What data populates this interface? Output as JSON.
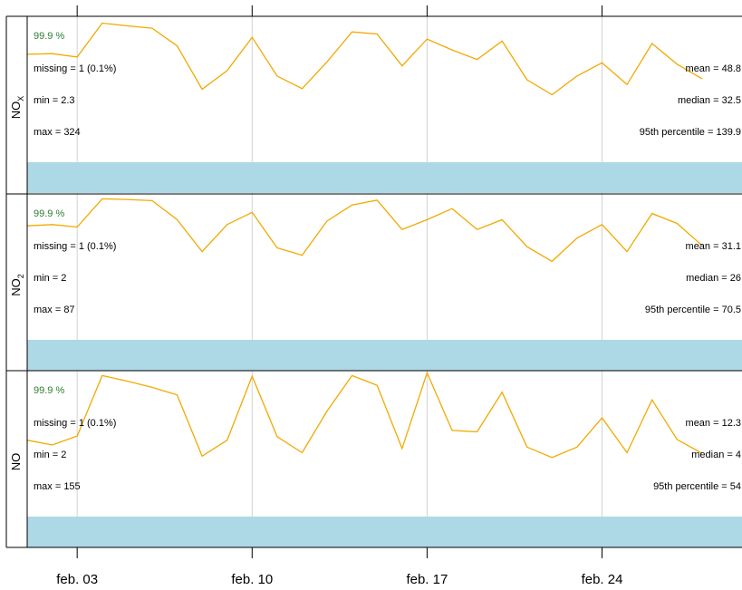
{
  "chart_data": {
    "type": "line",
    "x_ticks": [
      "feb. 03",
      "feb. 10",
      "feb. 17",
      "feb. 24"
    ],
    "x_tick_days": [
      3,
      10,
      17,
      24
    ],
    "xlim_days": [
      1.0,
      29.6
    ],
    "series_color": "#f2a900",
    "band_color": "#add8e6",
    "grid": true,
    "panels": [
      {
        "name": "NOX",
        "label_main": "NO",
        "label_sub": "X",
        "ylim": [
          -90,
          340
        ],
        "pct": "99.9 %",
        "missing": "missing = 1 (0.1%)",
        "min": "min = 2.3",
        "max": "max = 324",
        "mean": "mean = 48.8",
        "median": "median = 32.5",
        "p95": "95th percentile = 139.9",
        "series": [
          {
            "x": 1.0,
            "y": 228
          },
          {
            "x": 2.0,
            "y": 230
          },
          {
            "x": 3.0,
            "y": 220
          },
          {
            "x": 4.0,
            "y": 320
          },
          {
            "x": 5.0,
            "y": 312
          },
          {
            "x": 6.0,
            "y": 305
          },
          {
            "x": 7.0,
            "y": 253
          },
          {
            "x": 8.0,
            "y": 125
          },
          {
            "x": 9.0,
            "y": 180
          },
          {
            "x": 10.0,
            "y": 278
          },
          {
            "x": 11.0,
            "y": 164
          },
          {
            "x": 12.0,
            "y": 127
          },
          {
            "x": 13.0,
            "y": 206
          },
          {
            "x": 14.0,
            "y": 294
          },
          {
            "x": 15.0,
            "y": 288
          },
          {
            "x": 16.0,
            "y": 194
          },
          {
            "x": 17.0,
            "y": 273
          },
          {
            "x": 18.0,
            "y": 241
          },
          {
            "x": 19.0,
            "y": 213
          },
          {
            "x": 20.0,
            "y": 267
          },
          {
            "x": 21.0,
            "y": 153
          },
          {
            "x": 22.0,
            "y": 109
          },
          {
            "x": 23.0,
            "y": 164
          },
          {
            "x": 24.0,
            "y": 203
          },
          {
            "x": 25.0,
            "y": 139
          },
          {
            "x": 26.0,
            "y": 260
          },
          {
            "x": 27.0,
            "y": 199
          },
          {
            "x": 28.0,
            "y": 156
          }
        ]
      },
      {
        "name": "NO2",
        "label_main": "NO",
        "label_sub": "2",
        "ylim": [
          -27,
          92
        ],
        "pct": "99.9 %",
        "missing": "missing = 1 (0.1%)",
        "min": "min = 2",
        "max": "max = 87",
        "mean": "mean = 31.1",
        "median": "median = 26",
        "p95": "95th percentile = 70.5",
        "series": [
          {
            "x": 1.0,
            "y": 66
          },
          {
            "x": 2.0,
            "y": 67
          },
          {
            "x": 3.0,
            "y": 65
          },
          {
            "x": 4.0,
            "y": 88
          },
          {
            "x": 5.0,
            "y": 87.5
          },
          {
            "x": 6.0,
            "y": 86.5
          },
          {
            "x": 7.0,
            "y": 71
          },
          {
            "x": 8.0,
            "y": 45
          },
          {
            "x": 9.0,
            "y": 67
          },
          {
            "x": 10.0,
            "y": 77
          },
          {
            "x": 11.0,
            "y": 48
          },
          {
            "x": 12.0,
            "y": 42
          },
          {
            "x": 13.0,
            "y": 70
          },
          {
            "x": 14.0,
            "y": 83
          },
          {
            "x": 15.0,
            "y": 87
          },
          {
            "x": 16.0,
            "y": 63
          },
          {
            "x": 17.0,
            "y": 71
          },
          {
            "x": 18.0,
            "y": 80
          },
          {
            "x": 19.0,
            "y": 63
          },
          {
            "x": 20.0,
            "y": 71
          },
          {
            "x": 21.0,
            "y": 49
          },
          {
            "x": 22.0,
            "y": 37
          },
          {
            "x": 23.0,
            "y": 56
          },
          {
            "x": 24.0,
            "y": 67
          },
          {
            "x": 25.0,
            "y": 45
          },
          {
            "x": 26.0,
            "y": 76
          },
          {
            "x": 27.0,
            "y": 68
          },
          {
            "x": 28.0,
            "y": 50
          }
        ]
      },
      {
        "name": "NO",
        "label_main": "NO",
        "label_sub": "",
        "ylim": [
          -50,
          160
        ],
        "pct": "99.9 %",
        "missing": "missing = 1 (0.1%)",
        "min": "min = 2",
        "max": "max = 155",
        "mean": "mean = 12.3",
        "median": "median = 4",
        "p95": "95th percentile = 54",
        "series": [
          {
            "x": 1.0,
            "y": 60
          },
          {
            "x": 2.0,
            "y": 53
          },
          {
            "x": 3.0,
            "y": 66
          },
          {
            "x": 4.0,
            "y": 153
          },
          {
            "x": 5.0,
            "y": 145
          },
          {
            "x": 6.0,
            "y": 136
          },
          {
            "x": 7.0,
            "y": 125
          },
          {
            "x": 8.0,
            "y": 37
          },
          {
            "x": 9.0,
            "y": 60
          },
          {
            "x": 10.0,
            "y": 152
          },
          {
            "x": 11.0,
            "y": 65
          },
          {
            "x": 12.0,
            "y": 42
          },
          {
            "x": 13.0,
            "y": 102
          },
          {
            "x": 14.0,
            "y": 153
          },
          {
            "x": 15.0,
            "y": 139
          },
          {
            "x": 16.0,
            "y": 48
          },
          {
            "x": 17.0,
            "y": 157
          },
          {
            "x": 18.0,
            "y": 74
          },
          {
            "x": 19.0,
            "y": 72
          },
          {
            "x": 20.0,
            "y": 129
          },
          {
            "x": 21.0,
            "y": 50
          },
          {
            "x": 22.0,
            "y": 35
          },
          {
            "x": 23.0,
            "y": 50
          },
          {
            "x": 24.0,
            "y": 92
          },
          {
            "x": 25.0,
            "y": 42
          },
          {
            "x": 26.0,
            "y": 118
          },
          {
            "x": 27.0,
            "y": 61
          },
          {
            "x": 28.0,
            "y": 41
          }
        ]
      }
    ]
  }
}
